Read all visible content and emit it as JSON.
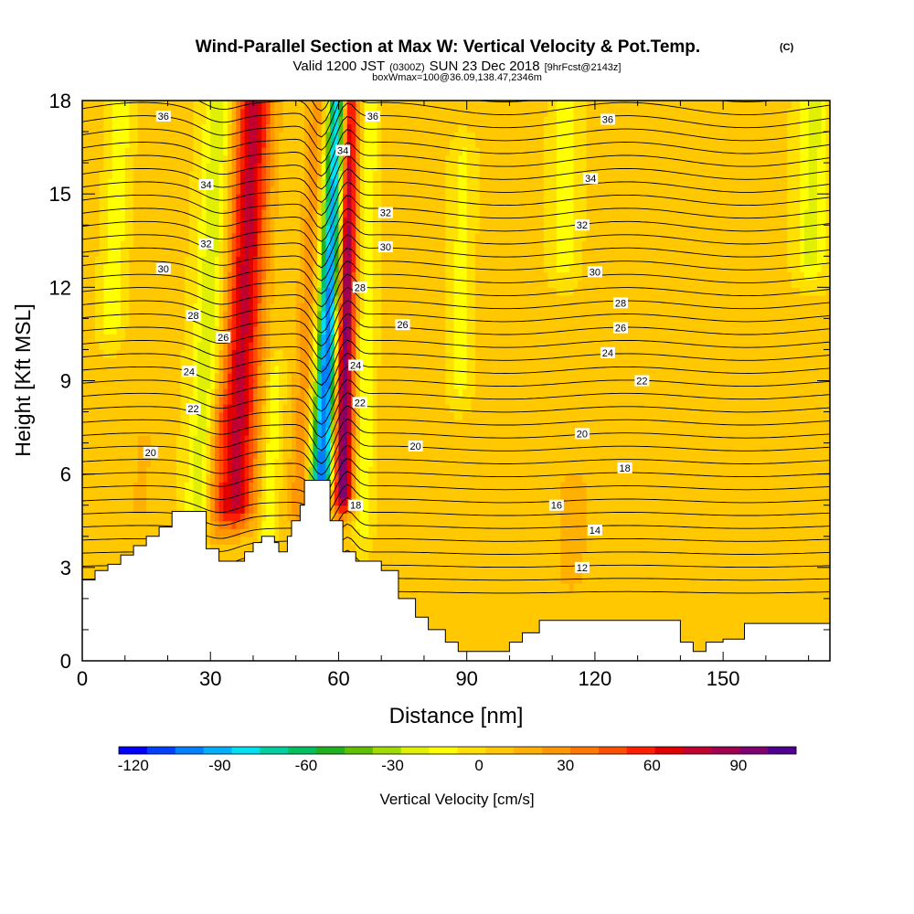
{
  "header": {
    "title_main": "Wind-Parallel Section at Max W: Vertical Velocity & Pot.Temp.",
    "title_mark": "(C)",
    "valid_prefix": "Valid 1200 JST",
    "valid_utc": "(0300Z)",
    "valid_date": "SUN 23 Dec 2018",
    "valid_fcst": "[9hrFcst@2143z]",
    "box_info": "boxWmax=100@36.09,138.47,2346m"
  },
  "chart_data": {
    "type": "heatmap",
    "xlabel": "Distance [nm]",
    "ylabel": "Height [Kft MSL]",
    "xlim": [
      0,
      175
    ],
    "ylim": [
      0,
      18
    ],
    "x_ticks": [
      0,
      30,
      60,
      90,
      120,
      150
    ],
    "y_ticks": [
      0,
      3,
      6,
      9,
      12,
      15,
      18
    ],
    "colorbar": {
      "label": "Vertical Velocity [cm/s]",
      "range": [
        -125,
        110
      ],
      "tick_values": [
        -120,
        -90,
        -60,
        -30,
        0,
        30,
        60,
        90
      ],
      "tick_labels": [
        "-120",
        "-90",
        "-60",
        "-30",
        "0",
        "30",
        "60",
        "90"
      ],
      "colors": [
        "#0000ff",
        "#0040ff",
        "#0080ff",
        "#00b0ff",
        "#00e0f0",
        "#00d0a0",
        "#00c060",
        "#20b020",
        "#60c000",
        "#a0dc00",
        "#e0f000",
        "#ffff00",
        "#ffe000",
        "#ffc800",
        "#ffb000",
        "#ff9800",
        "#ff7800",
        "#ff5000",
        "#ff2000",
        "#e00000",
        "#c00030",
        "#a00050",
        "#800070",
        "#500090"
      ]
    },
    "velocity_features": [
      {
        "x": 28,
        "zmin": 3.5,
        "zmax": 18,
        "w": -30,
        "width": 3.5
      },
      {
        "x": 36,
        "zmin": 5.0,
        "zmax": 18,
        "w": 70,
        "width": 4.5
      },
      {
        "x": 31,
        "zmin": 4.0,
        "zmax": 8,
        "w": 20,
        "width": 2.5
      },
      {
        "x": 44,
        "zmin": 4.0,
        "zmax": 9,
        "w": -20,
        "width": 2.0
      },
      {
        "x": 51,
        "zmin": 5.0,
        "zmax": 18,
        "w": 25,
        "width": 2.5
      },
      {
        "x": 56,
        "zmin": 6.0,
        "zmax": 18,
        "w": -110,
        "width": 2.6
      },
      {
        "x": 61,
        "zmin": 5.5,
        "zmax": 18,
        "w": 100,
        "width": 2.2
      },
      {
        "x": 66,
        "zmin": 4.5,
        "zmax": 18,
        "w": -20,
        "width": 2.0
      },
      {
        "x": 5,
        "zmin": 11,
        "zmax": 18,
        "w": -20,
        "width": 2.5
      },
      {
        "x": 88,
        "zmin": 9,
        "zmax": 16,
        "w": -15,
        "width": 2.5
      },
      {
        "x": 112,
        "zmin": 13,
        "zmax": 18,
        "w": -20,
        "width": 3.0
      },
      {
        "x": 170,
        "zmin": 13,
        "zmax": 18,
        "w": -25,
        "width": 3.5
      },
      {
        "x": 115,
        "zmin": 3,
        "zmax": 5.5,
        "w": 15,
        "width": 3.5
      },
      {
        "x": 14,
        "zmin": 5,
        "zmax": 7,
        "w": 10,
        "width": 3.0
      }
    ],
    "theta_contour_labels": [
      {
        "text": "36",
        "x": 19,
        "z": 17.5
      },
      {
        "text": "34",
        "x": 29,
        "z": 15.3
      },
      {
        "text": "32",
        "x": 29,
        "z": 13.4
      },
      {
        "text": "30",
        "x": 19,
        "z": 12.6
      },
      {
        "text": "28",
        "x": 26,
        "z": 11.1
      },
      {
        "text": "26",
        "x": 33,
        "z": 10.4
      },
      {
        "text": "24",
        "x": 25,
        "z": 9.3
      },
      {
        "text": "22",
        "x": 26,
        "z": 8.1
      },
      {
        "text": "20",
        "x": 16,
        "z": 6.7
      },
      {
        "text": "36",
        "x": 68,
        "z": 17.5
      },
      {
        "text": "34",
        "x": 61,
        "z": 16.4
      },
      {
        "text": "32",
        "x": 71,
        "z": 14.4
      },
      {
        "text": "30",
        "x": 71,
        "z": 13.3
      },
      {
        "text": "28",
        "x": 65,
        "z": 12.0
      },
      {
        "text": "26",
        "x": 75,
        "z": 10.8
      },
      {
        "text": "24",
        "x": 64,
        "z": 9.5
      },
      {
        "text": "22",
        "x": 65,
        "z": 8.3
      },
      {
        "text": "20",
        "x": 78,
        "z": 6.9
      },
      {
        "text": "18",
        "x": 64,
        "z": 5.0
      },
      {
        "text": "36",
        "x": 123,
        "z": 17.4
      },
      {
        "text": "34",
        "x": 119,
        "z": 15.5
      },
      {
        "text": "32",
        "x": 117,
        "z": 14.0
      },
      {
        "text": "30",
        "x": 120,
        "z": 12.5
      },
      {
        "text": "28",
        "x": 126,
        "z": 11.5
      },
      {
        "text": "26",
        "x": 126,
        "z": 10.7
      },
      {
        "text": "24",
        "x": 123,
        "z": 9.9
      },
      {
        "text": "22",
        "x": 131,
        "z": 9.0
      },
      {
        "text": "20",
        "x": 117,
        "z": 7.3
      },
      {
        "text": "18",
        "x": 127,
        "z": 6.2
      },
      {
        "text": "16",
        "x": 111,
        "z": 5.0
      },
      {
        "text": "14",
        "x": 120,
        "z": 4.2
      },
      {
        "text": "12",
        "x": 117,
        "z": 3.0
      }
    ],
    "terrain": [
      [
        0,
        2.6
      ],
      [
        3,
        2.6
      ],
      [
        3,
        2.9
      ],
      [
        6,
        2.9
      ],
      [
        6,
        3.1
      ],
      [
        9,
        3.1
      ],
      [
        9,
        3.4
      ],
      [
        12,
        3.4
      ],
      [
        12,
        3.7
      ],
      [
        15,
        3.7
      ],
      [
        15,
        4.0
      ],
      [
        18,
        4.0
      ],
      [
        18,
        4.3
      ],
      [
        21,
        4.3
      ],
      [
        21,
        4.8
      ],
      [
        29,
        4.8
      ],
      [
        29,
        3.6
      ],
      [
        32,
        3.6
      ],
      [
        32,
        3.2
      ],
      [
        38,
        3.2
      ],
      [
        38,
        3.5
      ],
      [
        40,
        3.5
      ],
      [
        40,
        3.8
      ],
      [
        42,
        3.8
      ],
      [
        42,
        4.0
      ],
      [
        45,
        4.0
      ],
      [
        45,
        3.8
      ],
      [
        46,
        3.8
      ],
      [
        46,
        3.5
      ],
      [
        48,
        3.5
      ],
      [
        48,
        4.0
      ],
      [
        49,
        4.0
      ],
      [
        49,
        4.5
      ],
      [
        51,
        4.5
      ],
      [
        51,
        5.0
      ],
      [
        52,
        5.0
      ],
      [
        52,
        5.8
      ],
      [
        58,
        5.8
      ],
      [
        58,
        4.5
      ],
      [
        61,
        4.5
      ],
      [
        61,
        3.5
      ],
      [
        64,
        3.5
      ],
      [
        64,
        3.2
      ],
      [
        70,
        3.2
      ],
      [
        70,
        2.9
      ],
      [
        74,
        2.9
      ],
      [
        74,
        2.0
      ],
      [
        78,
        2.0
      ],
      [
        78,
        1.4
      ],
      [
        81,
        1.4
      ],
      [
        81,
        1.0
      ],
      [
        85,
        1.0
      ],
      [
        85,
        0.6
      ],
      [
        88,
        0.6
      ],
      [
        88,
        0.3
      ],
      [
        100,
        0.3
      ],
      [
        100,
        0.6
      ],
      [
        103,
        0.6
      ],
      [
        103,
        0.9
      ],
      [
        107,
        0.9
      ],
      [
        107,
        1.3
      ],
      [
        140,
        1.3
      ],
      [
        140,
        0.6
      ],
      [
        143,
        0.6
      ],
      [
        143,
        0.3
      ],
      [
        146,
        0.3
      ],
      [
        146,
        0.6
      ],
      [
        150,
        0.6
      ],
      [
        150,
        0.7
      ],
      [
        155,
        0.7
      ],
      [
        155,
        1.2
      ],
      [
        175,
        1.2
      ],
      [
        175,
        0
      ]
    ]
  }
}
